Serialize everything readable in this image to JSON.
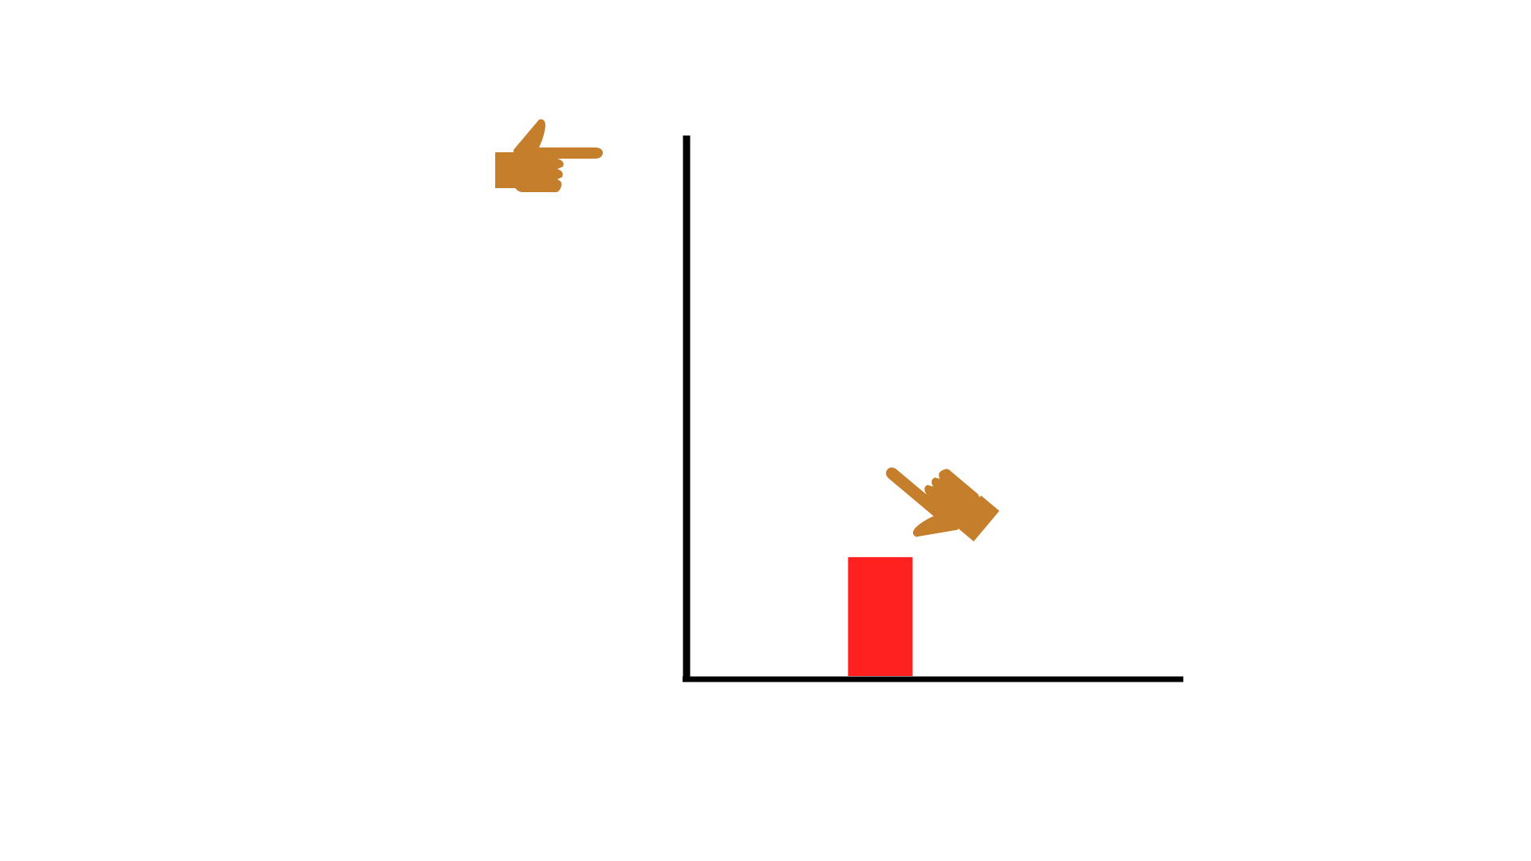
{
  "colors": {
    "background": "#ffffff",
    "axis": "#000000",
    "bar": "#ff2020",
    "hand": "#c47e2c"
  },
  "chart_data": {
    "type": "bar",
    "categories": [
      ""
    ],
    "values": [
      0.22
    ],
    "ylim": [
      0,
      1
    ],
    "title": "",
    "xlabel": "",
    "ylabel": "",
    "grid": false,
    "legend": "none"
  },
  "icons": {
    "left_hand": "pointing-hand-right-icon",
    "right_hand": "pointing-hand-down-left-icon"
  }
}
